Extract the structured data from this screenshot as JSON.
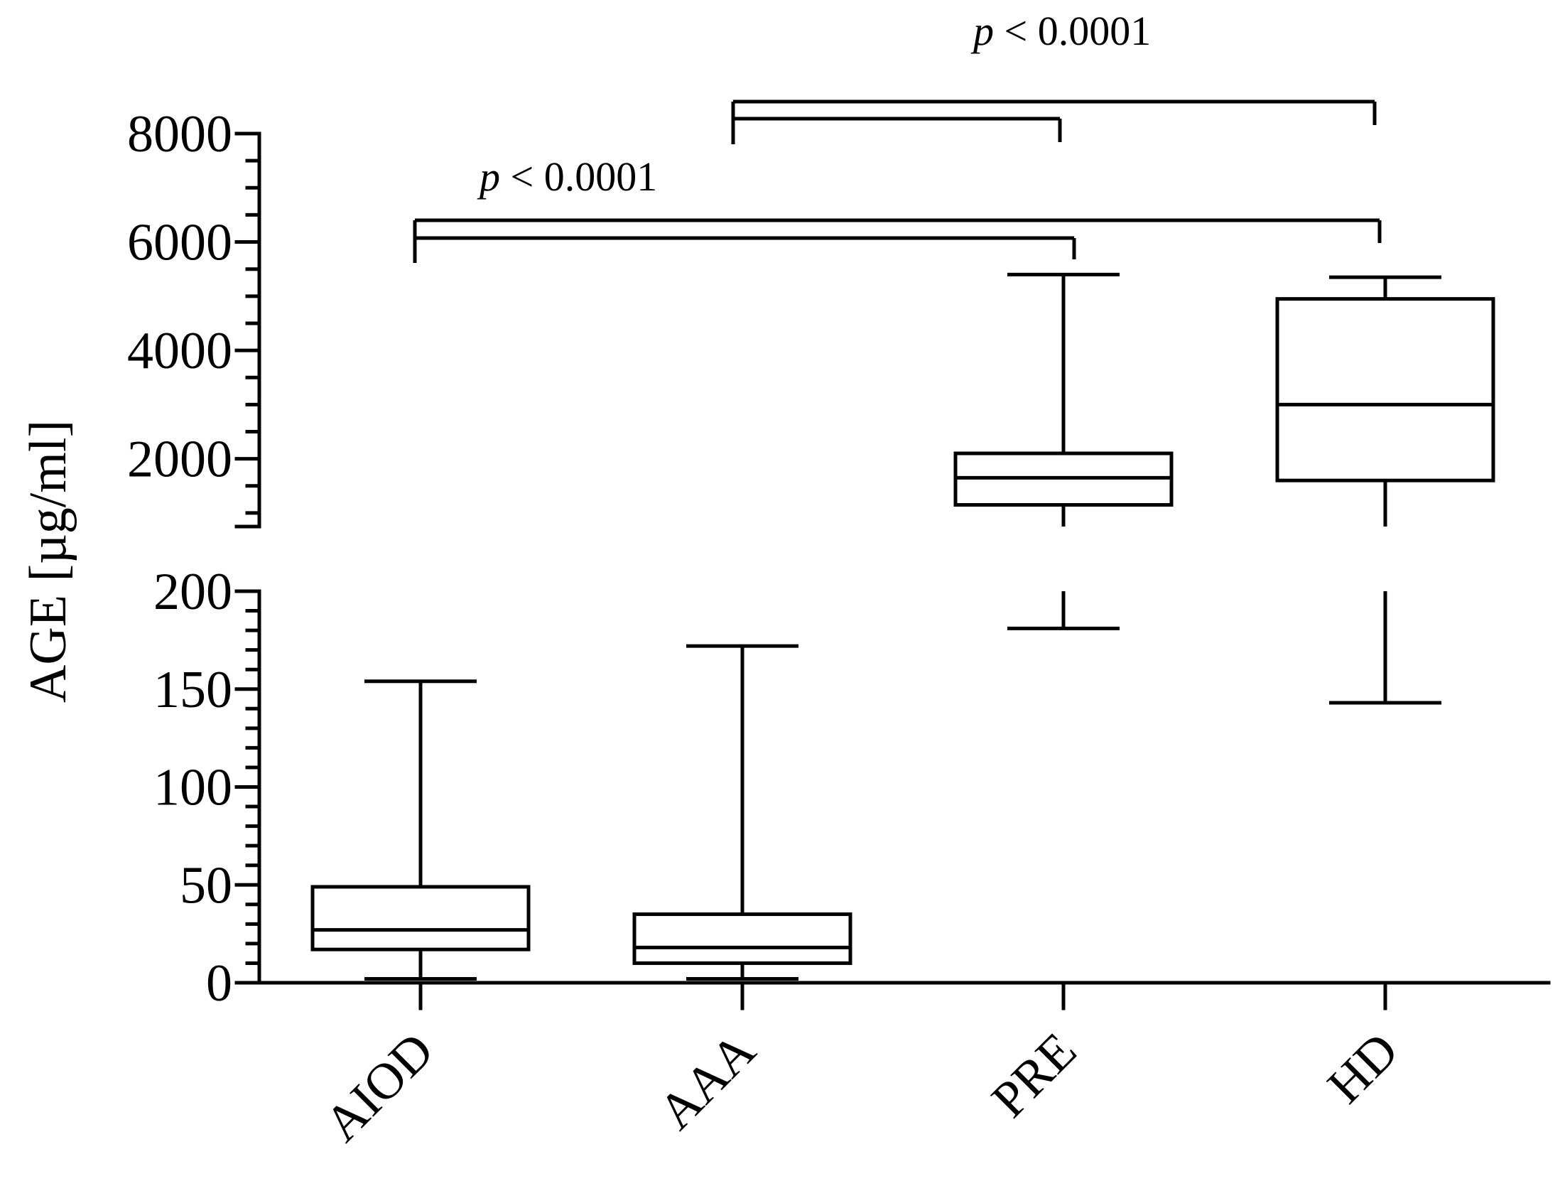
{
  "chart_data": {
    "type": "box",
    "ylabel": "AGE [µg/ml]",
    "categories": [
      "AIOD",
      "AAA",
      "PRE",
      "HD"
    ],
    "axis_break": true,
    "segments": [
      {
        "range": [
          0,
          200
        ],
        "ticks": [
          "0",
          "50",
          "100",
          "150",
          "200"
        ],
        "minor_step": 10
      },
      {
        "range": [
          750,
          8000
        ],
        "ticks": [
          "2000",
          "4000",
          "6000",
          "8000"
        ],
        "minor_step": 500
      }
    ],
    "boxes": [
      {
        "category": "AIOD",
        "min": 2,
        "q1": 17,
        "median": 27,
        "q3": 49,
        "max": 154
      },
      {
        "category": "AAA",
        "min": 2,
        "q1": 10,
        "median": 18,
        "q3": 35,
        "max": 172
      },
      {
        "category": "PRE",
        "min": 181,
        "q1": 1150,
        "median": 1650,
        "q3": 2100,
        "max": 5400
      },
      {
        "category": "HD",
        "min": 143,
        "q1": 1600,
        "median": 3000,
        "q3": 4950,
        "max": 5350
      }
    ],
    "comparisons": [
      {
        "from": "AIOD",
        "to": [
          "PRE",
          "HD"
        ],
        "label_prefix": "p",
        "label_rest": " < 0.0001"
      },
      {
        "from": "AAA",
        "to": [
          "PRE",
          "HD"
        ],
        "label_prefix": "p",
        "label_rest": " < 0.0001"
      }
    ]
  }
}
